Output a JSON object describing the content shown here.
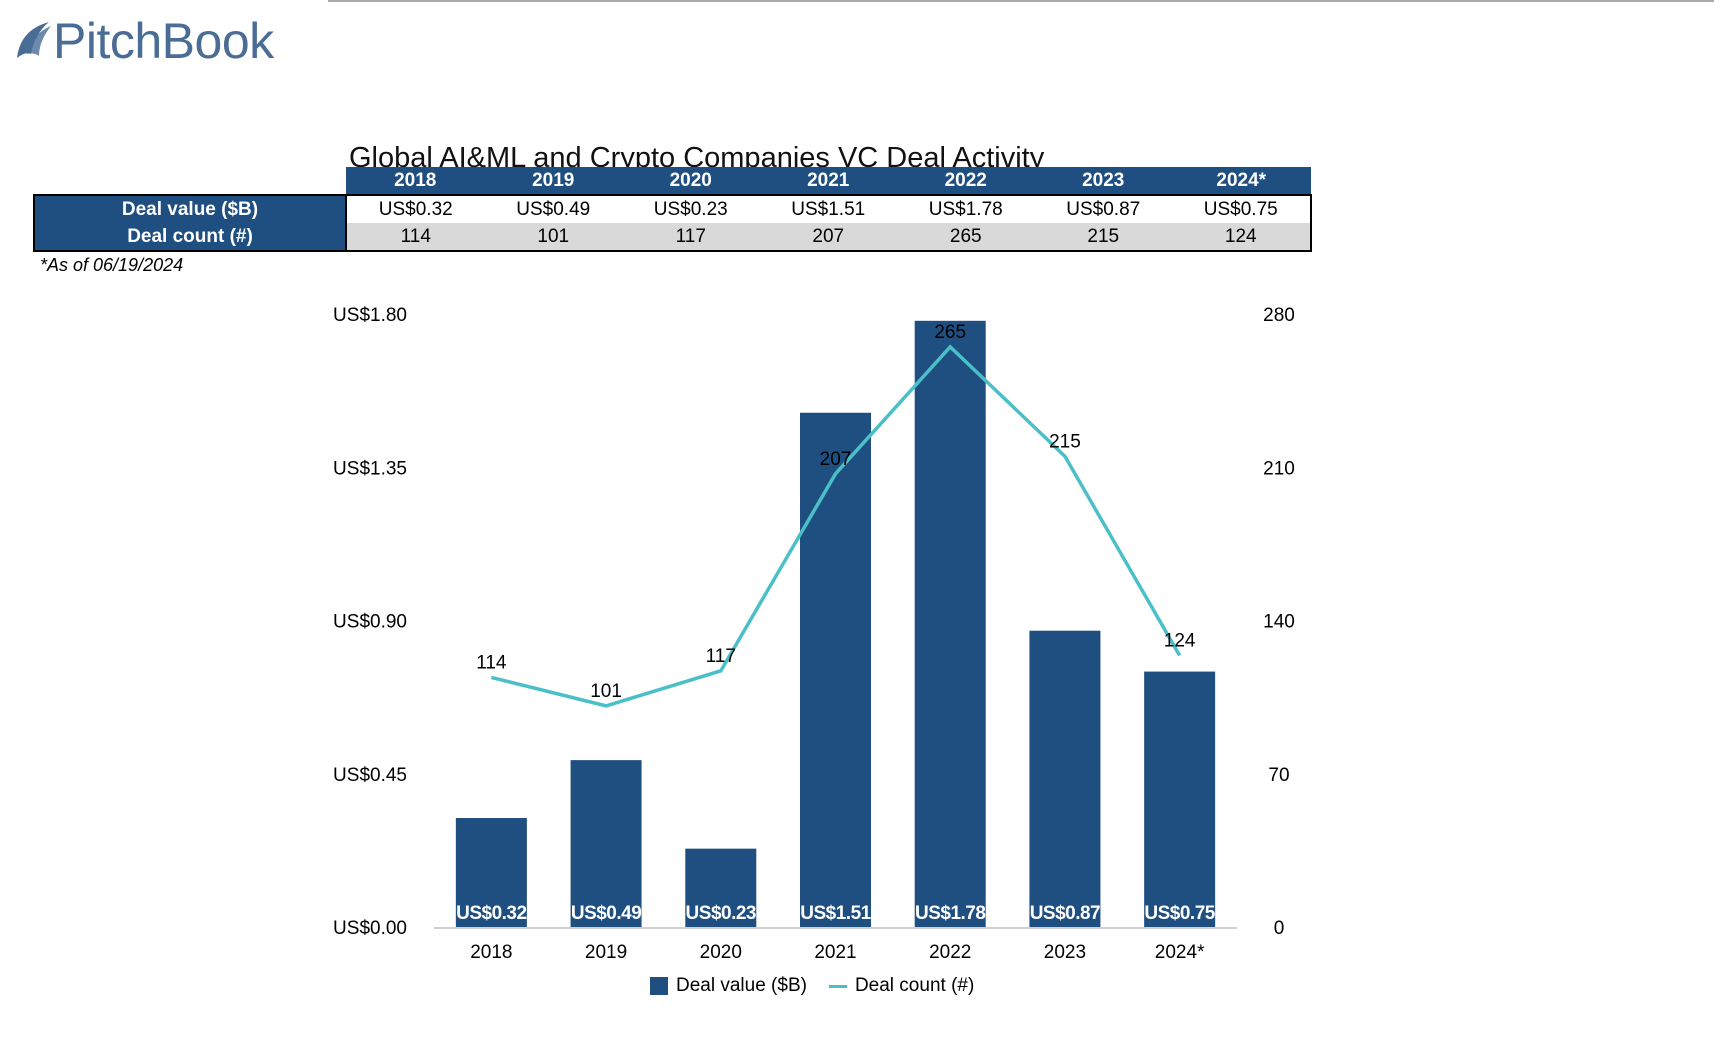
{
  "brand": "PitchBook",
  "table": {
    "years": [
      "2018",
      "2019",
      "2020",
      "2021",
      "2022",
      "2023",
      "2024*"
    ],
    "rows": [
      {
        "label": "Deal value ($B)",
        "values": [
          "US$0.32",
          "US$0.49",
          "US$0.23",
          "US$1.51",
          "US$1.78",
          "US$0.87",
          "US$0.75"
        ]
      },
      {
        "label": "Deal count (#)",
        "values": [
          "114",
          "101",
          "117",
          "207",
          "265",
          "215",
          "124"
        ]
      }
    ],
    "note": "*As of 06/19/2024"
  },
  "colors": {
    "bar": "#1f4e80",
    "line": "#4bbfc8"
  },
  "chart_data": {
    "type": "bar+line",
    "title": "Global AI&ML and Crypto Companies VC Deal Activity",
    "categories": [
      "2018",
      "2019",
      "2020",
      "2021",
      "2022",
      "2023",
      "2024*"
    ],
    "series": [
      {
        "name": "Deal value ($B)",
        "type": "bar",
        "axis": "left",
        "values": [
          0.32,
          0.49,
          0.23,
          1.51,
          1.78,
          0.87,
          0.75
        ],
        "labels": [
          "US$0.32",
          "US$0.49",
          "US$0.23",
          "US$1.51",
          "US$1.78",
          "US$0.87",
          "US$0.75"
        ]
      },
      {
        "name": "Deal count (#)",
        "type": "line",
        "axis": "right",
        "values": [
          114,
          101,
          117,
          207,
          265,
          215,
          124
        ]
      }
    ],
    "y_left": {
      "range": [
        0,
        1.8
      ],
      "ticks": [
        "US$0.00",
        "US$0.45",
        "US$0.90",
        "US$1.35",
        "US$1.80"
      ]
    },
    "y_right": {
      "range": [
        0,
        280
      ],
      "ticks": [
        "0",
        "70",
        "140",
        "210",
        "280"
      ]
    },
    "grid": false,
    "legend": "bottom"
  }
}
